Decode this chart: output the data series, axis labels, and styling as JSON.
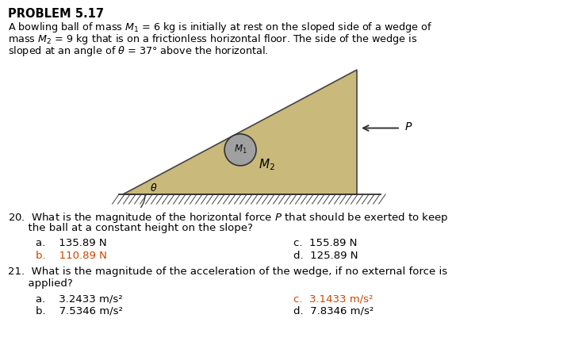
{
  "title": "PROBLEM 5.17",
  "desc_line1": "A bowling ball of mass $M_1$ = 6 kg is initially at rest on the sloped side of a wedge of",
  "desc_line2": "mass $M_2$ = 9 kg that is on a frictionless horizontal floor. The side of the wedge is",
  "desc_line3": "sloped at an angle of $\\theta$ = 37° above the horizontal.",
  "q20_line1": "20.  What is the magnitude of the horizontal force $P$ that should be exerted to keep",
  "q20_line2": "      the ball at a constant height on the slope?",
  "q20_a": "a.    135.89 N",
  "q20_b": "b.    110.89 N",
  "q20_c": "c.  155.89 N",
  "q20_d": "d.  125.89 N",
  "q21_line1": "21.  What is the magnitude of the acceleration of the wedge, if no external force is",
  "q21_line2": "      applied?",
  "q21_a": "a.    3.2433 m/s²",
  "q21_b": "b.    7.5346 m/s²",
  "q21_c": "c.  3.1433 m/s²",
  "q21_d": "d.  7.8346 m/s²",
  "wedge_color": "#C9B97A",
  "wedge_edge_color": "#444444",
  "ball_color": "#A0A0A0",
  "ball_edge_color": "#333333",
  "correct_color": "#CC4400",
  "normal_color": "#000000",
  "bg_color": "#FFFFFF"
}
